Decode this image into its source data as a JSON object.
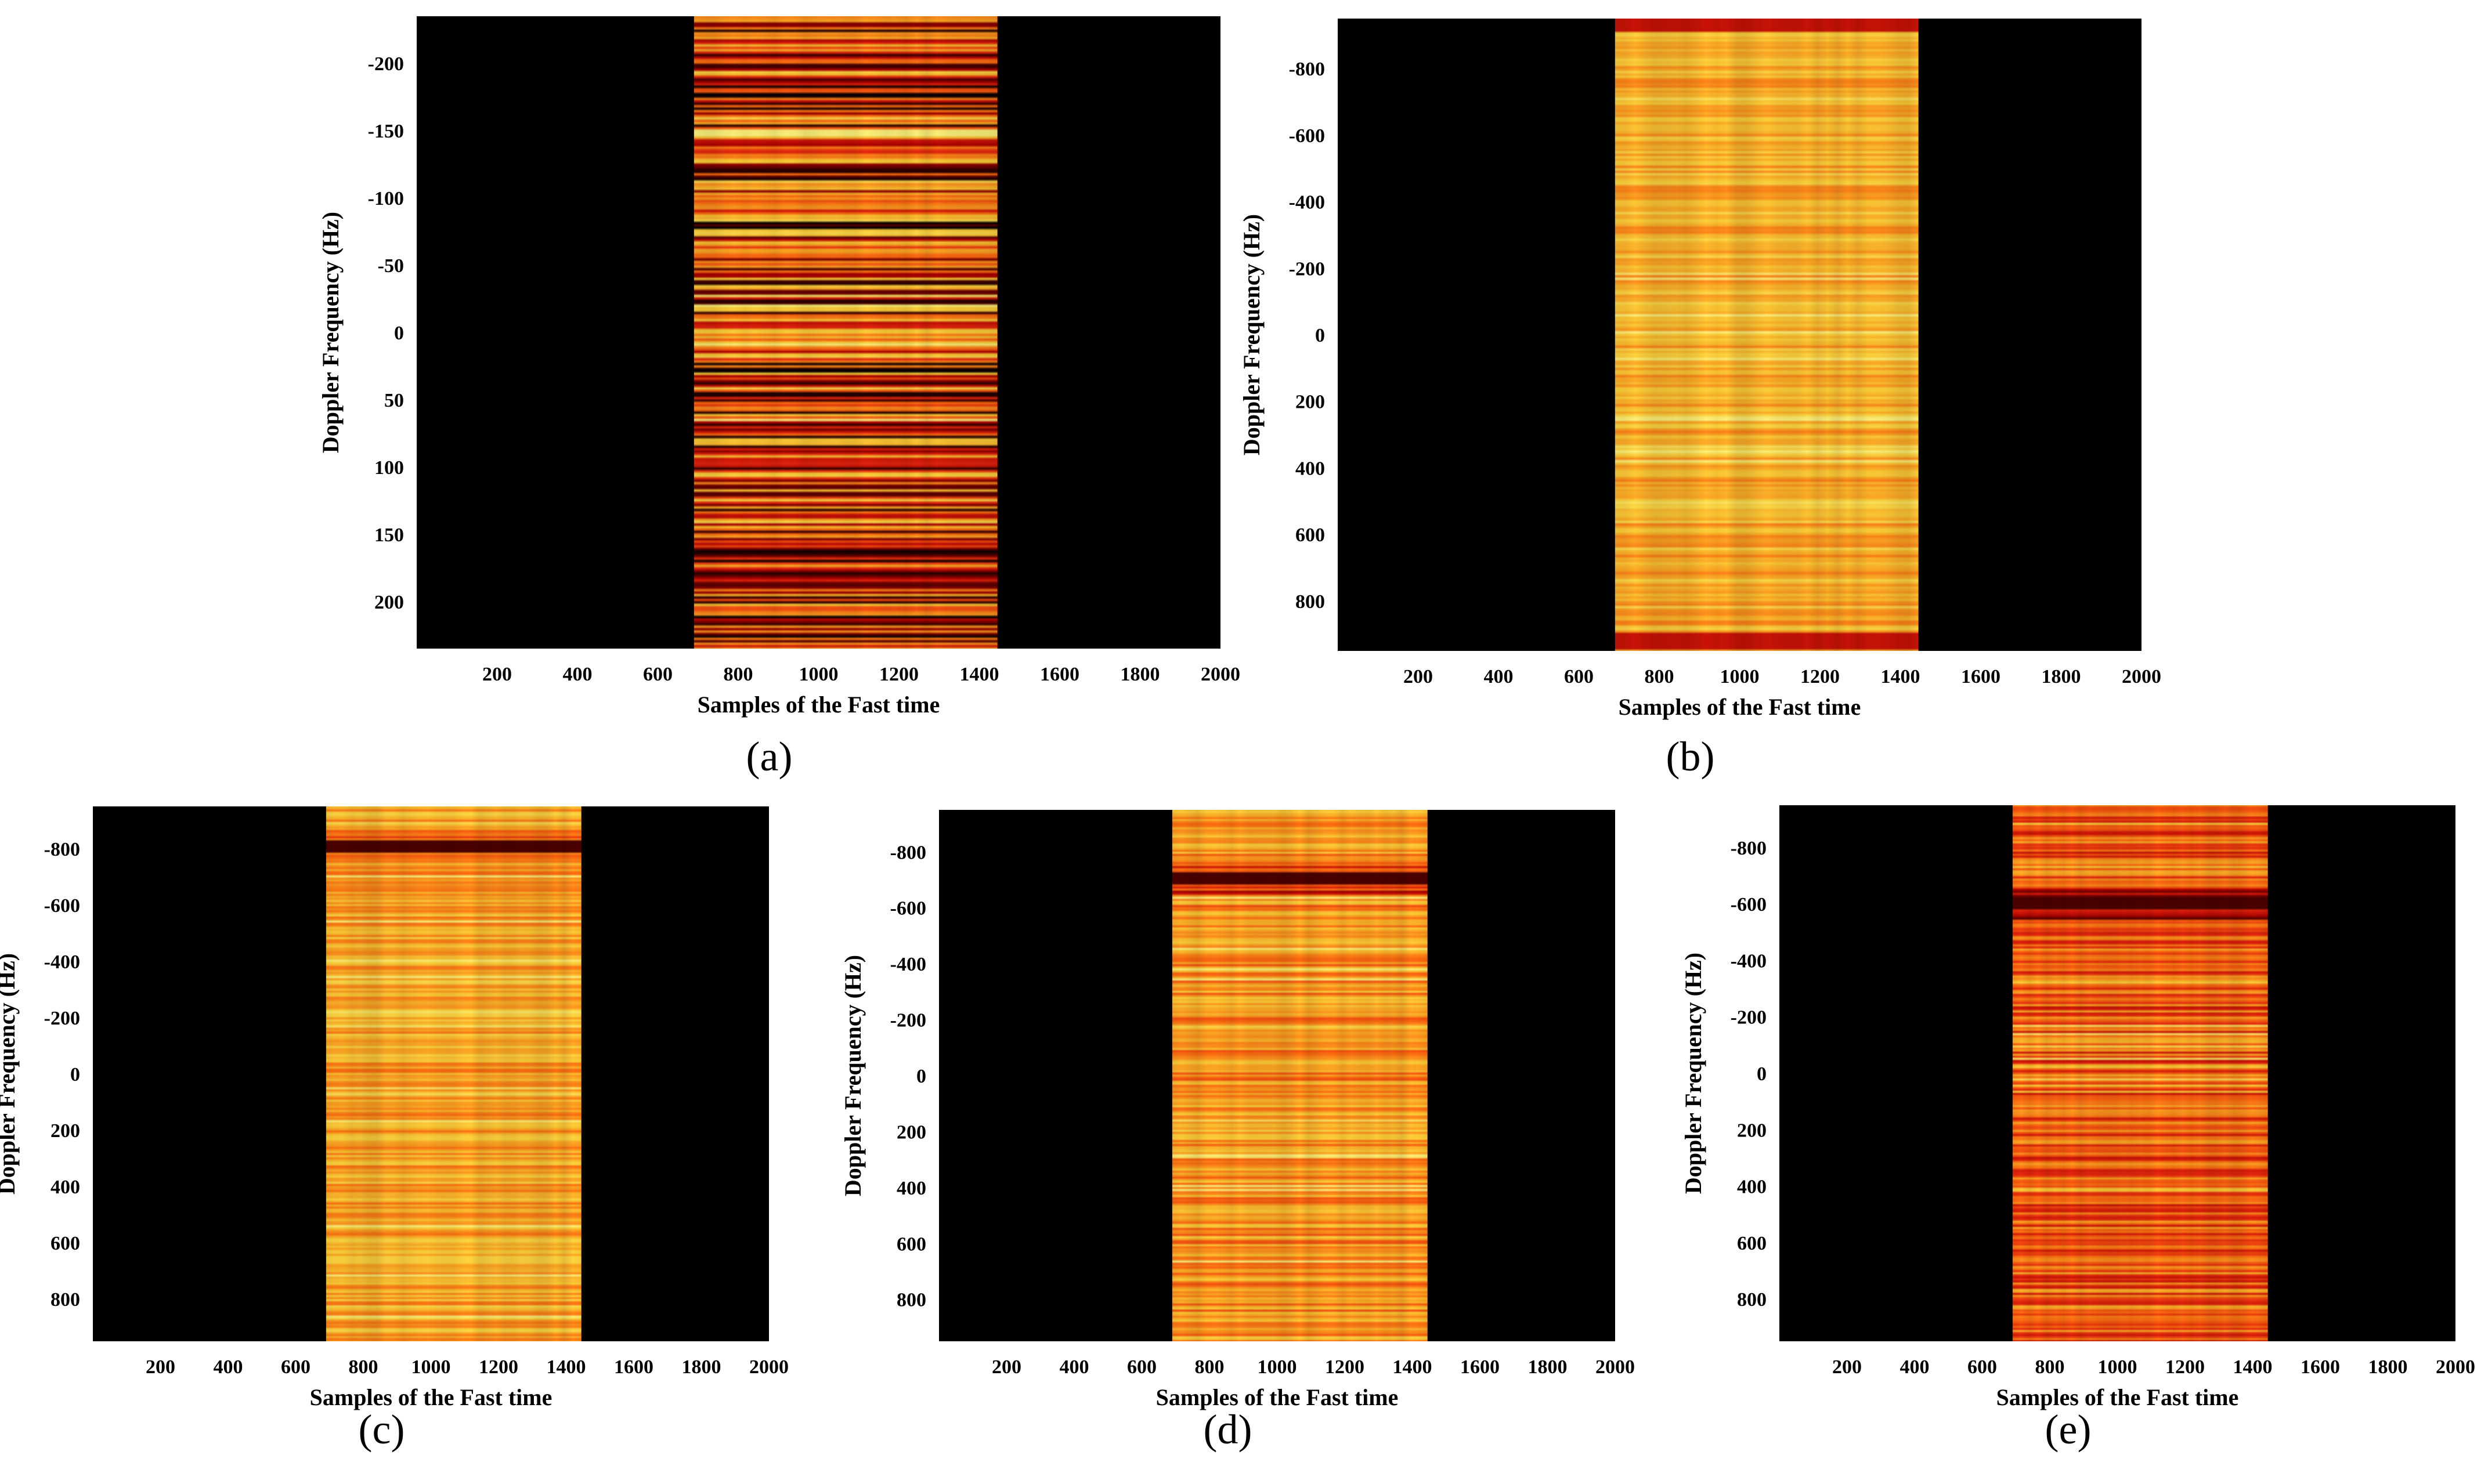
{
  "figure": {
    "background": "#ffffff",
    "colors": {
      "background_plot": "#000000",
      "colormap": [
        "#000000",
        "#5a0000",
        "#b00000",
        "#e8270d",
        "#ff6a10",
        "#ffa522",
        "#ffd23a",
        "#fff27a"
      ]
    }
  },
  "chart_data": [
    {
      "type": "heatmap",
      "panel_label": "(a)",
      "title": "",
      "xlabel": "Samples of the Fast time",
      "ylabel": "Doppler Frequency (Hz)",
      "xlim": [
        0,
        2000
      ],
      "ylim": [
        -235,
        235
      ],
      "y_reversed": true,
      "xticks": [
        200,
        400,
        600,
        800,
        1000,
        1200,
        1400,
        1600,
        1800,
        2000
      ],
      "yticks": [
        -200,
        -150,
        -100,
        -50,
        0,
        50,
        100,
        150,
        200
      ],
      "signal_band": {
        "x_start": 690,
        "x_end": 1445
      },
      "intensity_profile": "mostly red with dense yellow streaks",
      "dark_bands": [],
      "mean_level": 0.45,
      "variation": 0.45
    },
    {
      "type": "heatmap",
      "panel_label": "(b)",
      "title": "",
      "xlabel": "Samples of the Fast time",
      "ylabel": "Doppler Frequency (Hz)",
      "xlim": [
        0,
        2000
      ],
      "ylim": [
        -950,
        950
      ],
      "y_reversed": true,
      "xticks": [
        200,
        400,
        600,
        800,
        1000,
        1200,
        1400,
        1600,
        1800,
        2000
      ],
      "yticks": [
        -800,
        -600,
        -400,
        -200,
        0,
        200,
        400,
        600,
        800
      ],
      "signal_band": {
        "x_start": 690,
        "x_end": 1445
      },
      "intensity_profile": "mostly orange-yellow with red edges at top and bottom",
      "dark_bands": [],
      "edge_bands": [
        -935,
        920
      ],
      "mean_level": 0.76,
      "variation": 0.14
    },
    {
      "type": "heatmap",
      "panel_label": "(c)",
      "title": "",
      "xlabel": "Samples of the Fast time",
      "ylabel": "Doppler Frequency (Hz)",
      "xlim": [
        0,
        2000
      ],
      "ylim": [
        -950,
        950
      ],
      "y_reversed": true,
      "xticks": [
        200,
        400,
        600,
        800,
        1000,
        1200,
        1400,
        1600,
        1800,
        2000
      ],
      "yticks": [
        -800,
        -600,
        -400,
        -200,
        0,
        200,
        400,
        600,
        800
      ],
      "signal_band": {
        "x_start": 690,
        "x_end": 1445
      },
      "intensity_profile": "orange-yellow with a dark band near the top",
      "dark_bands": [
        -810
      ],
      "mean_level": 0.74,
      "variation": 0.16
    },
    {
      "type": "heatmap",
      "panel_label": "(d)",
      "title": "",
      "xlabel": "Samples of the Fast time",
      "ylabel": "Doppler Frequency (Hz)",
      "xlim": [
        0,
        2000
      ],
      "ylim": [
        -950,
        950
      ],
      "y_reversed": true,
      "xticks": [
        200,
        400,
        600,
        800,
        1000,
        1200,
        1400,
        1600,
        1800,
        2000
      ],
      "yticks": [
        -800,
        -600,
        -400,
        -200,
        0,
        200,
        400,
        600,
        800
      ],
      "signal_band": {
        "x_start": 690,
        "x_end": 1445
      },
      "intensity_profile": "orange-yellow with a dark band around -700 Hz",
      "dark_bands": [
        -705
      ],
      "mean_level": 0.68,
      "variation": 0.18
    },
    {
      "type": "heatmap",
      "panel_label": "(e)",
      "title": "",
      "xlabel": "Samples of the Fast time",
      "ylabel": "Doppler Frequency (Hz)",
      "xlim": [
        0,
        2000
      ],
      "ylim": [
        -950,
        950
      ],
      "y_reversed": true,
      "xticks": [
        200,
        400,
        600,
        800,
        1000,
        1200,
        1400,
        1600,
        1800,
        2000
      ],
      "yticks": [
        -800,
        -600,
        -400,
        -200,
        0,
        200,
        400,
        600,
        800
      ],
      "signal_band": {
        "x_start": 690,
        "x_end": 1445
      },
      "intensity_profile": "red-orange with a dark band around -600 Hz",
      "dark_bands": [
        -605
      ],
      "mean_level": 0.55,
      "variation": 0.2
    }
  ]
}
